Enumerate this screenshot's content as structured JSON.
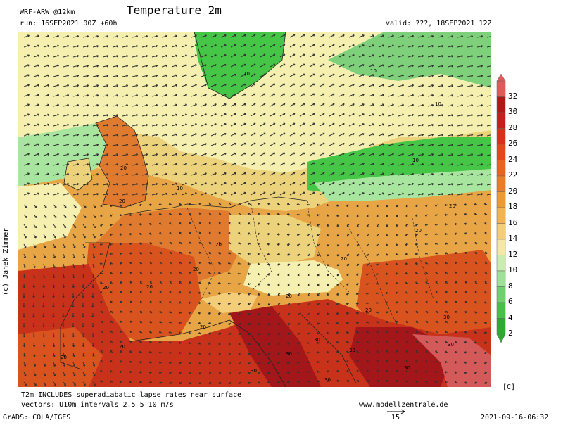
{
  "header": {
    "model": "WRF-ARW @12km",
    "run": "run: 16SEP2021 00Z +60h",
    "title": "Temperature 2m",
    "valid": "valid: ???, 18SEP2021 12Z"
  },
  "map": {
    "contour_labels": [
      "10",
      "10",
      "10",
      "10",
      "10",
      "20",
      "20",
      "20",
      "20",
      "20",
      "20",
      "20",
      "20",
      "20",
      "20",
      "20",
      "20",
      "20",
      "20",
      "30",
      "30",
      "30",
      "30",
      "30",
      "30",
      "30",
      "30"
    ],
    "colors": {
      "green": "#46c646",
      "light_green": "#a8e6a0",
      "pale_yellow": "#f5f0b0",
      "yellow": "#ecd27a",
      "orange": "#e8a545",
      "dark_orange": "#e07a2e",
      "red_orange": "#d9531e",
      "red": "#c8321a",
      "dark_red": "#a3161a",
      "sea_blue": "#9fc7d6",
      "sea_green": "#8fd0a8"
    }
  },
  "colorbar": {
    "ticks": [
      "32",
      "30",
      "28",
      "26",
      "24",
      "22",
      "20",
      "18",
      "16",
      "14",
      "12",
      "10",
      "8",
      "6",
      "4",
      "2"
    ],
    "colors": [
      "#e05a5a",
      "#b01818",
      "#c41f1f",
      "#d6301b",
      "#e2471a",
      "#e8631e",
      "#eb7d26",
      "#ee9a34",
      "#f1b450",
      "#f3cd78",
      "#f6e7a8",
      "#c9edb0",
      "#9fe09a",
      "#6fd06f",
      "#48c048",
      "#2faa30"
    ],
    "unit": "[C]"
  },
  "footer": {
    "note1": "T2m INCLUDES superadiabatic lapse rates near surface",
    "note2": "vectors: U10m intervals 2.5 5 10 m/s",
    "website": "www.modellzentrale.de",
    "grads": "GrADS: COLA/IGES",
    "vector_ref": "15",
    "timestamp": "2021-09-16-06:32"
  },
  "credit": "(c) Janek Zimmer"
}
